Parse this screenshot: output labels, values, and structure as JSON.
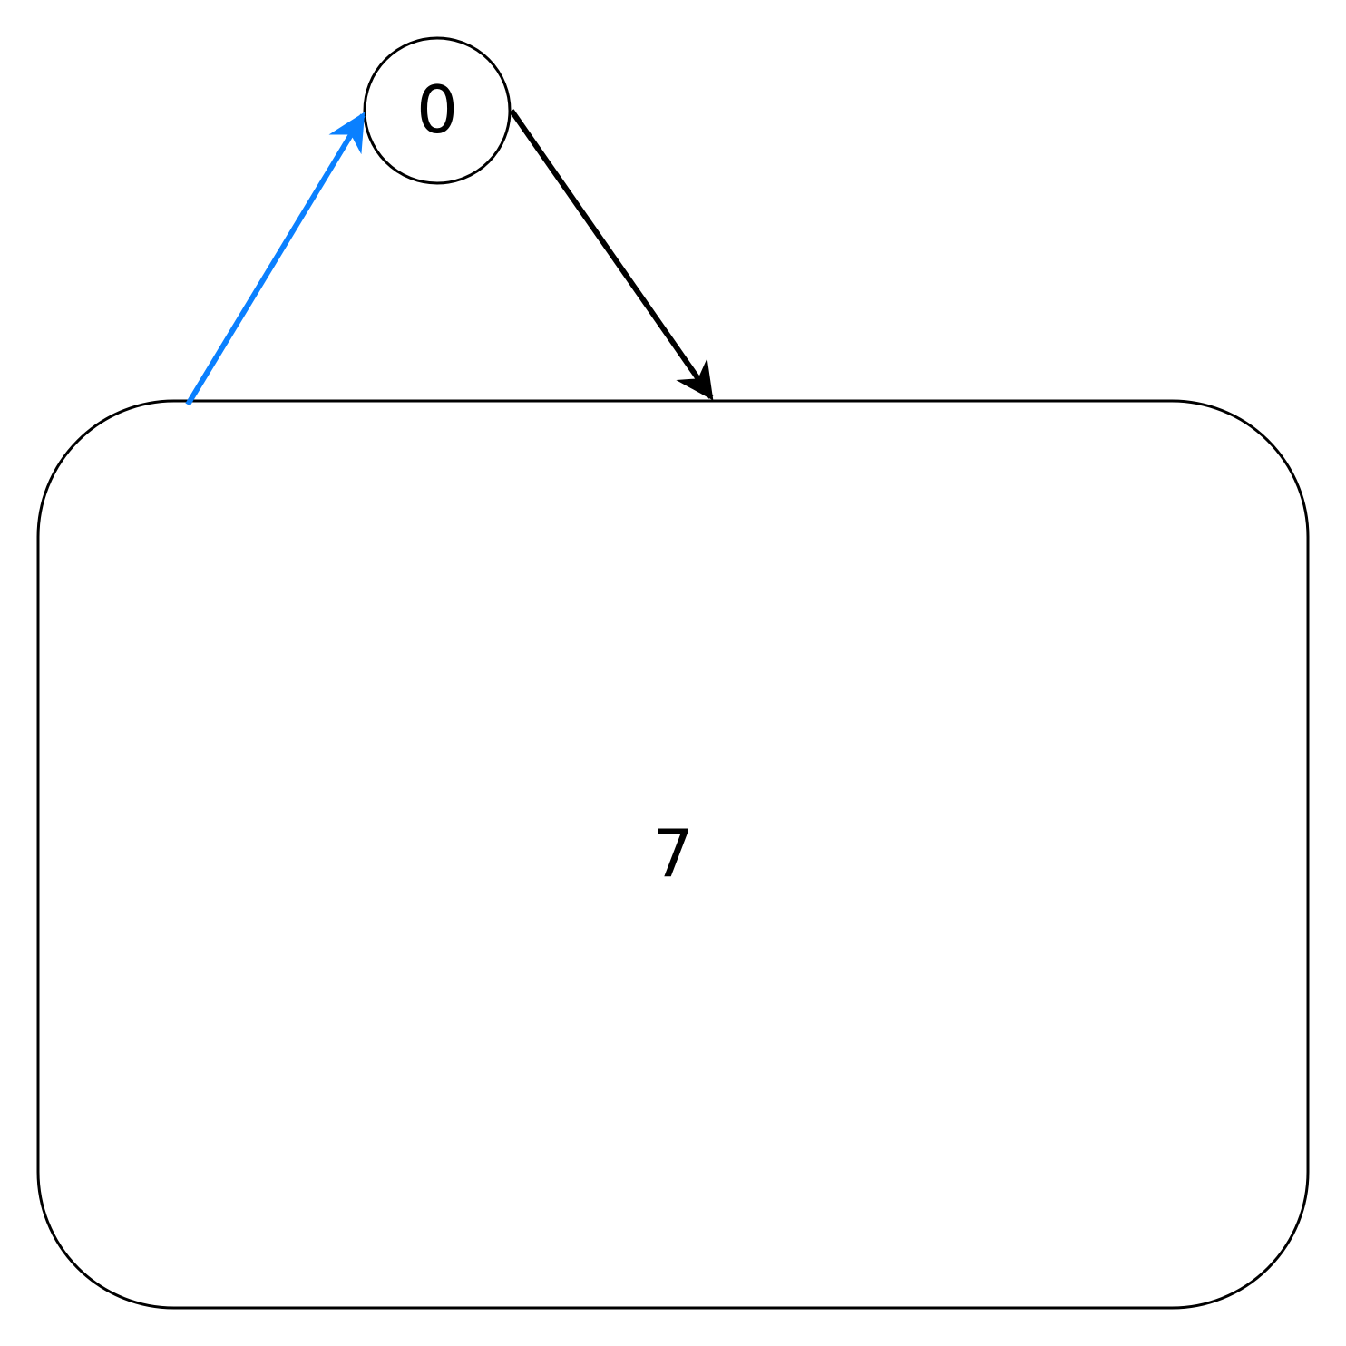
{
  "diagram": {
    "nodes": [
      {
        "id": "node-0",
        "label": "0",
        "shape": "circle"
      },
      {
        "id": "node-7",
        "label": "7",
        "shape": "rounded-rectangle"
      }
    ],
    "edges": [
      {
        "from": "node-7",
        "to": "node-0",
        "color": "#0a80ff"
      },
      {
        "from": "node-0",
        "to": "node-7",
        "color": "#000000"
      }
    ]
  }
}
